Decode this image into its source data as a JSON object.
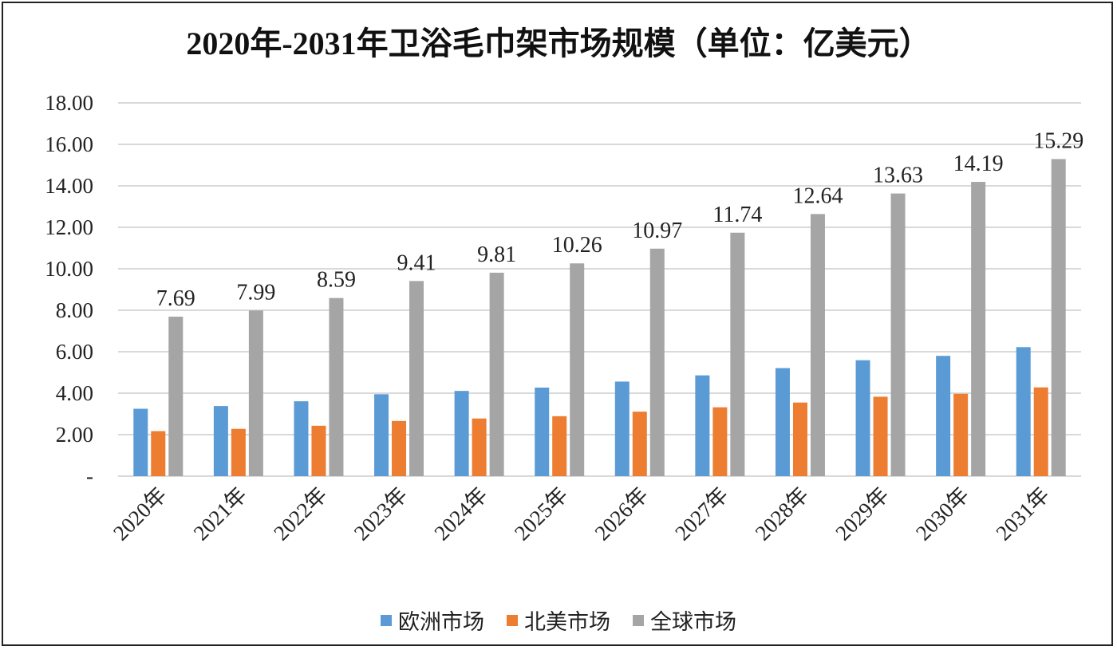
{
  "chart_data": {
    "type": "bar",
    "title": "2020年-2031年卫浴毛巾架市场规模（单位：亿美元）",
    "categories": [
      "2020年",
      "2021年",
      "2022年",
      "2023年",
      "2024年",
      "2025年",
      "2026年",
      "2027年",
      "2028年",
      "2029年",
      "2030年",
      "2031年"
    ],
    "series": [
      {
        "name": "欧洲市场",
        "color": "#5B9BD5",
        "values": [
          3.25,
          3.38,
          3.61,
          3.95,
          4.11,
          4.27,
          4.56,
          4.86,
          5.21,
          5.59,
          5.8,
          6.22
        ]
      },
      {
        "name": "北美市场",
        "color": "#ED7D31",
        "values": [
          2.17,
          2.28,
          2.43,
          2.66,
          2.78,
          2.89,
          3.11,
          3.32,
          3.55,
          3.83,
          3.97,
          4.28
        ]
      },
      {
        "name": "全球市场",
        "color": "#A5A5A5",
        "values": [
          7.69,
          7.99,
          8.59,
          9.41,
          9.81,
          10.26,
          10.97,
          11.74,
          12.64,
          13.63,
          14.19,
          15.29
        ]
      }
    ],
    "data_labels": [
      "7.69",
      "7.99",
      "8.59",
      "9.41",
      "9.81",
      "10.26",
      "10.97",
      "11.74",
      "12.64",
      "13.63",
      "14.19",
      "15.29"
    ],
    "yticks": [
      "-",
      "2.00",
      "4.00",
      "6.00",
      "8.00",
      "10.00",
      "12.00",
      "14.00",
      "16.00",
      "18.00"
    ],
    "ylim": [
      0,
      18
    ],
    "grid": true,
    "legend_position": "bottom",
    "xlabel": "",
    "ylabel": ""
  }
}
